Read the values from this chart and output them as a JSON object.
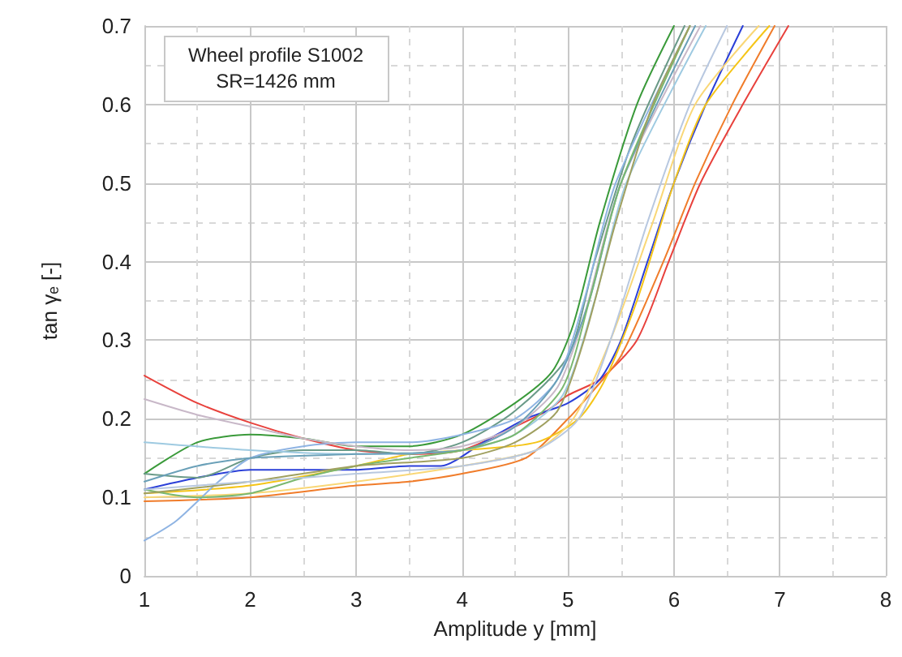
{
  "chart_data": {
    "type": "line",
    "xlabel": "Amplitude y [mm]",
    "ylabel": "tan γₑ [-]",
    "annotations": [
      "Wheel profile S1002",
      "SR=1426 mm"
    ],
    "xlim": [
      1,
      8
    ],
    "xticks": [
      1,
      2,
      3,
      4,
      5,
      6,
      7,
      8
    ],
    "ylim": [
      0,
      0.7
    ],
    "yticks": [
      0,
      0.1,
      0.2,
      0.3,
      0.4,
      0.5,
      0.6,
      0.7
    ],
    "grid": true,
    "marker": "none",
    "line_style": "solid",
    "series": [
      {
        "color": "#e8413c",
        "x": [
          1,
          1.5,
          2,
          2.5,
          3,
          3.5,
          4,
          4.5,
          4.8,
          5,
          5.3,
          5.65,
          5.95,
          6.25,
          6.65,
          7.08
        ],
        "values": [
          0.255,
          0.22,
          0.195,
          0.175,
          0.16,
          0.155,
          0.16,
          0.19,
          0.21,
          0.23,
          0.25,
          0.3,
          0.4,
          0.5,
          0.6,
          0.7
        ]
      },
      {
        "color": "#f07c2a",
        "x": [
          1,
          2,
          3,
          3.5,
          4,
          4.6,
          5,
          5.2,
          5.5,
          5.9,
          6.2,
          6.55,
          6.95
        ],
        "values": [
          0.095,
          0.1,
          0.115,
          0.12,
          0.13,
          0.15,
          0.2,
          0.23,
          0.28,
          0.4,
          0.5,
          0.6,
          0.7
        ]
      },
      {
        "color": "#2a3fd8",
        "x": [
          1,
          1.5,
          2,
          2.5,
          3,
          3.5,
          3.8,
          4.2,
          4.6,
          5,
          5.3,
          5.5,
          5.75,
          6,
          6.3,
          6.65
        ],
        "values": [
          0.11,
          0.125,
          0.135,
          0.135,
          0.135,
          0.14,
          0.14,
          0.17,
          0.2,
          0.22,
          0.25,
          0.3,
          0.4,
          0.5,
          0.6,
          0.7
        ]
      },
      {
        "color": "#f5c518",
        "x": [
          1,
          2,
          3,
          3.5,
          4,
          4.7,
          5.1,
          5.35,
          5.65,
          6,
          6.3,
          6.9
        ],
        "values": [
          0.105,
          0.115,
          0.14,
          0.155,
          0.16,
          0.17,
          0.2,
          0.25,
          0.35,
          0.5,
          0.6,
          0.7
        ]
      },
      {
        "color": "#f9d776",
        "x": [
          1,
          2,
          3,
          4,
          4.7,
          5.05,
          5.4,
          5.8,
          6.2,
          6.8
        ],
        "values": [
          0.1,
          0.105,
          0.12,
          0.14,
          0.16,
          0.2,
          0.3,
          0.45,
          0.6,
          0.7
        ]
      },
      {
        "color": "#3a9a3a",
        "x": [
          1,
          1.5,
          2,
          2.5,
          3,
          3.5,
          4,
          4.5,
          4.85,
          5.05,
          5.3,
          5.65,
          6
        ],
        "values": [
          0.13,
          0.17,
          0.18,
          0.175,
          0.165,
          0.165,
          0.18,
          0.22,
          0.26,
          0.32,
          0.45,
          0.6,
          0.7
        ]
      },
      {
        "color": "#6a9a88",
        "x": [
          1,
          1.5,
          2,
          2.5,
          3,
          3.5,
          4,
          4.5,
          5,
          5.25,
          5.6,
          6.1
        ],
        "values": [
          0.13,
          0.125,
          0.15,
          0.16,
          0.16,
          0.155,
          0.17,
          0.21,
          0.28,
          0.4,
          0.55,
          0.7
        ]
      },
      {
        "color": "#8fb4e3",
        "x": [
          1,
          1.3,
          1.7,
          2,
          2.5,
          3,
          3.5,
          4,
          4.5,
          4.9,
          5.15,
          5.45,
          6.15
        ],
        "values": [
          0.045,
          0.07,
          0.12,
          0.15,
          0.165,
          0.17,
          0.17,
          0.18,
          0.2,
          0.25,
          0.35,
          0.5,
          0.7
        ]
      },
      {
        "color": "#c8b8c8",
        "x": [
          1,
          1.5,
          2,
          2.5,
          3,
          3.5,
          4,
          4.5,
          4.9,
          5.15,
          5.5,
          6.25
        ],
        "values": [
          0.225,
          0.205,
          0.19,
          0.175,
          0.165,
          0.16,
          0.165,
          0.19,
          0.24,
          0.33,
          0.5,
          0.7
        ]
      },
      {
        "color": "#9ecae1",
        "x": [
          1,
          2,
          3,
          4,
          4.5,
          4.95,
          5.25,
          5.55,
          6.3
        ],
        "values": [
          0.17,
          0.16,
          0.155,
          0.16,
          0.18,
          0.23,
          0.35,
          0.5,
          0.7
        ]
      },
      {
        "color": "#6aa0b8",
        "x": [
          1,
          1.5,
          2,
          3,
          4,
          4.5,
          4.9,
          5.2,
          5.5,
          6.2
        ],
        "values": [
          0.12,
          0.14,
          0.15,
          0.155,
          0.16,
          0.19,
          0.25,
          0.35,
          0.5,
          0.7
        ]
      },
      {
        "color": "#7ab870",
        "x": [
          1,
          1.5,
          2,
          2.5,
          3,
          3.5,
          4,
          4.5,
          4.95,
          5.2,
          5.5,
          6.15
        ],
        "values": [
          0.11,
          0.1,
          0.105,
          0.125,
          0.14,
          0.15,
          0.16,
          0.18,
          0.24,
          0.35,
          0.5,
          0.7
        ]
      },
      {
        "color": "#a0a060",
        "x": [
          1,
          2,
          3,
          4,
          4.5,
          4.9,
          5.15,
          5.45,
          5.8,
          6.15
        ],
        "values": [
          0.105,
          0.12,
          0.14,
          0.15,
          0.17,
          0.21,
          0.3,
          0.45,
          0.6,
          0.7
        ]
      },
      {
        "color": "#b8c8e0",
        "x": [
          1,
          2,
          3,
          4,
          4.7,
          5.1,
          5.4,
          5.75,
          6.15,
          6.5
        ],
        "values": [
          0.11,
          0.12,
          0.13,
          0.14,
          0.16,
          0.2,
          0.3,
          0.45,
          0.6,
          0.7
        ]
      }
    ]
  }
}
